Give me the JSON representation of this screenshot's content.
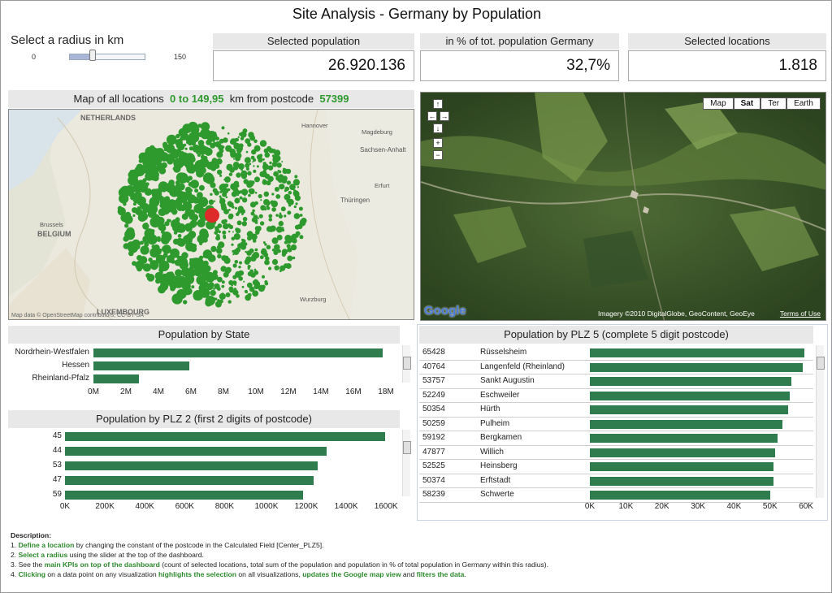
{
  "title": "Site Analysis - Germany by Population",
  "radius": {
    "label": "Select a radius in km",
    "min": "0",
    "max": "150",
    "value_fraction": 0.3
  },
  "kpis": [
    {
      "label": "Selected population",
      "value": "26.920.136"
    },
    {
      "label": "in % of tot. population Germany",
      "value": "32,7%"
    },
    {
      "label": "Selected locations",
      "value": "1.818"
    }
  ],
  "map_left": {
    "title_pre": "Map of all locations",
    "range": "0 to 149,95",
    "title_mid": "km from postcode",
    "postcode": "57399",
    "place_labels": [
      "NETHERLANDS",
      "BELGIUM",
      "LUXEMBOURG",
      "Brussels",
      "Sachsen-Anhalt",
      "Thüringen",
      "Wurzburg",
      "Hannover",
      "Magdeburg",
      "Erfurt"
    ],
    "attribution": "Map data © OpenStreetMap contributors, CC-BY-SA",
    "colors": {
      "points": "#2e9a2e",
      "center": "#dd2a2a"
    }
  },
  "map_right": {
    "buttons": [
      "Map",
      "Sat",
      "Ter",
      "Earth"
    ],
    "active_button": "Sat",
    "nav": [
      "↑",
      "←",
      "→",
      "↓",
      "+",
      "−"
    ],
    "logo": "Google",
    "credit": "Imagery ©2010 DigitalGlobe, GeoContent, GeoEye",
    "terms": "Terms of Use"
  },
  "state_chart": {
    "title": "Population by State",
    "rows": [
      {
        "label": "Nordrhein-Westfalen",
        "value": 17.8
      },
      {
        "label": "Hessen",
        "value": 5.9
      },
      {
        "label": "Rheinland-Pfalz",
        "value": 2.8
      }
    ],
    "max": 18.5,
    "ticks": [
      "0M",
      "2M",
      "4M",
      "6M",
      "8M",
      "10M",
      "12M",
      "14M",
      "16M",
      "18M"
    ]
  },
  "plz2_chart": {
    "title": "Population by PLZ 2 (first 2 digits of postcode)",
    "rows": [
      {
        "label": "45",
        "value": 1605
      },
      {
        "label": "44",
        "value": 1310
      },
      {
        "label": "53",
        "value": 1265
      },
      {
        "label": "47",
        "value": 1245
      },
      {
        "label": "59",
        "value": 1195
      }
    ],
    "max": 1650,
    "ticks": [
      "0K",
      "200K",
      "400K",
      "600K",
      "800K",
      "1000K",
      "1200K",
      "1400K",
      "1600K"
    ]
  },
  "plz5_chart": {
    "title": "Population by PLZ 5 (complete 5 digit postcode)",
    "rows": [
      {
        "code": "65428",
        "city": "Rüsselsheim",
        "value": 59.5
      },
      {
        "code": "40764",
        "city": "Langenfeld (Rheinland)",
        "value": 59.0
      },
      {
        "code": "53757",
        "city": "Sankt Augustin",
        "value": 56.0
      },
      {
        "code": "52249",
        "city": "Eschweiler",
        "value": 55.5
      },
      {
        "code": "50354",
        "city": "Hürth",
        "value": 55.0
      },
      {
        "code": "50259",
        "city": "Pulheim",
        "value": 53.5
      },
      {
        "code": "59192",
        "city": "Bergkamen",
        "value": 52.0
      },
      {
        "code": "47877",
        "city": "Willich",
        "value": 51.5
      },
      {
        "code": "52525",
        "city": "Heinsberg",
        "value": 51.0
      },
      {
        "code": "50374",
        "city": "Erftstadt",
        "value": 51.0
      },
      {
        "code": "58239",
        "city": "Schwerte",
        "value": 50.0
      }
    ],
    "max": 62,
    "ticks": [
      "0K",
      "10K",
      "20K",
      "30K",
      "40K",
      "50K",
      "60K"
    ]
  },
  "description": {
    "heading": "Description:",
    "l1_num": "1.",
    "l1_hl": "Define a location",
    "l1_rest": " by changing the constant of the postcode in the Calculated Field [Center_PLZ5].",
    "l2_num": "2.",
    "l2_hl": "Select a radius",
    "l2_rest": " using the slider at the top of the dashboard.",
    "l3_num": "3.",
    "l3_a": "See the ",
    "l3_hl": "main KPIs on top of the dashboard",
    "l3_rest": " (count of selected locations, total sum of the population and population in % of total population in Germany within this radius).",
    "l4_num": "4.",
    "l4_hl1": "Clicking",
    "l4_a": " on a data point on any visualization ",
    "l4_hl2": "highlights the selection",
    "l4_b": " on all visualizations, ",
    "l4_hl3": "updates the Google map view",
    "l4_c": " and ",
    "l4_hl4": "filters the data",
    "l4_d": "."
  }
}
